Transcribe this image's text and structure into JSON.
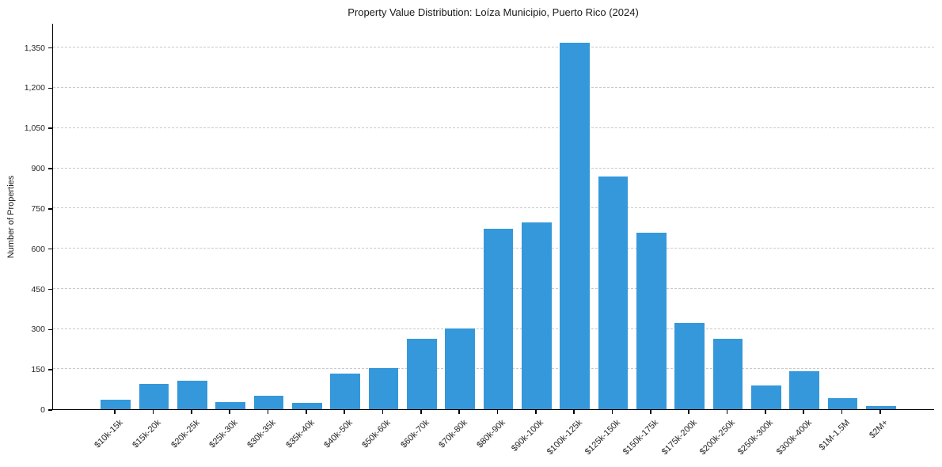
{
  "chart_data": {
    "type": "bar",
    "title": "Property Value Distribution: Loíza Municipio, Puerto Rico (2024)",
    "xlabel": "",
    "ylabel": "Number of Properties",
    "categories": [
      "$10k-15k",
      "$15k-20k",
      "$20k-25k",
      "$25k-30k",
      "$30k-35k",
      "$35k-40k",
      "$40k-50k",
      "$50k-60k",
      "$60k-70k",
      "$70k-80k",
      "$80k-90k",
      "$90k-100k",
      "$100k-125k",
      "$125k-150k",
      "$150k-175k",
      "$175k-200k",
      "$200k-250k",
      "$250k-300k",
      "$300k-400k",
      "$1M-1.5M",
      "$2M+"
    ],
    "values": [
      36,
      95,
      107,
      27,
      50,
      24,
      134,
      155,
      262,
      303,
      675,
      697,
      1370,
      870,
      660,
      322,
      262,
      90,
      143,
      42,
      12
    ],
    "yticks": [
      {
        "value": 0,
        "label": "0"
      },
      {
        "value": 150,
        "label": "150"
      },
      {
        "value": 300,
        "label": "300"
      },
      {
        "value": 450,
        "label": "450"
      },
      {
        "value": 600,
        "label": "600"
      },
      {
        "value": 750,
        "label": "750"
      },
      {
        "value": 900,
        "label": "900"
      },
      {
        "value": 1050,
        "label": "1,050"
      },
      {
        "value": 1200,
        "label": "1,200"
      },
      {
        "value": 1350,
        "label": "1,350"
      }
    ],
    "ylim": [
      0,
      1440
    ],
    "grid": "horizontal-dashed",
    "legend": "none",
    "bar_color": "#3498db",
    "grid_color": "#c9c9c9",
    "axis_color": "#000000",
    "text_color": "#262626"
  }
}
